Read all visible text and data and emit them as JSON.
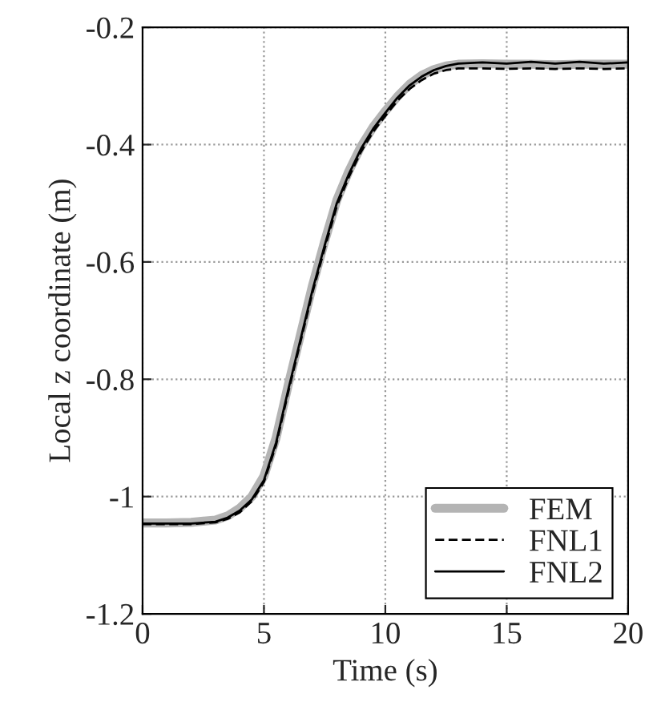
{
  "chart_data": {
    "type": "line",
    "xlabel": "Time (s)",
    "ylabel": "Local z coordinate (m)",
    "xlim": [
      0,
      20
    ],
    "ylim": [
      -1.2,
      -0.2
    ],
    "xticks": [
      0,
      5,
      10,
      15,
      20
    ],
    "yticks": [
      -1.2,
      -1,
      -0.8,
      -0.6,
      -0.4,
      -0.2
    ],
    "grid": true,
    "legend": "bottom right",
    "x": [
      0,
      1,
      2,
      3,
      3.5,
      4,
      4.5,
      5,
      5.5,
      6,
      6.5,
      7,
      7.5,
      8,
      8.5,
      9,
      9.5,
      10,
      10.5,
      11,
      11.5,
      12,
      12.5,
      13,
      14,
      15,
      16,
      17,
      18,
      19,
      20
    ],
    "series": [
      {
        "name": "FEM",
        "color": "#b4b4b4",
        "line_style": "solid",
        "values": [
          -1.045,
          -1.045,
          -1.044,
          -1.04,
          -1.033,
          -1.02,
          -1.0,
          -0.965,
          -0.9,
          -0.81,
          -0.725,
          -0.64,
          -0.565,
          -0.495,
          -0.445,
          -0.403,
          -0.37,
          -0.343,
          -0.318,
          -0.297,
          -0.282,
          -0.272,
          -0.266,
          -0.263,
          -0.262,
          -0.263,
          -0.263,
          -0.264,
          -0.263,
          -0.263,
          -0.263
        ]
      },
      {
        "name": "FNL1",
        "color": "#000000",
        "line_style": "dashed",
        "values": [
          -1.047,
          -1.047,
          -1.047,
          -1.044,
          -1.038,
          -1.027,
          -1.008,
          -0.975,
          -0.912,
          -0.822,
          -0.737,
          -0.652,
          -0.577,
          -0.505,
          -0.455,
          -0.412,
          -0.378,
          -0.351,
          -0.325,
          -0.305,
          -0.29,
          -0.279,
          -0.273,
          -0.27,
          -0.27,
          -0.271,
          -0.27,
          -0.271,
          -0.27,
          -0.271,
          -0.27
        ]
      },
      {
        "name": "FNL2",
        "color": "#000000",
        "line_style": "solid",
        "values": [
          -1.046,
          -1.046,
          -1.046,
          -1.043,
          -1.036,
          -1.024,
          -1.005,
          -0.972,
          -0.908,
          -0.818,
          -0.733,
          -0.648,
          -0.572,
          -0.5,
          -0.45,
          -0.407,
          -0.373,
          -0.346,
          -0.32,
          -0.299,
          -0.284,
          -0.273,
          -0.266,
          -0.262,
          -0.26,
          -0.262,
          -0.259,
          -0.262,
          -0.259,
          -0.262,
          -0.26
        ]
      }
    ]
  }
}
